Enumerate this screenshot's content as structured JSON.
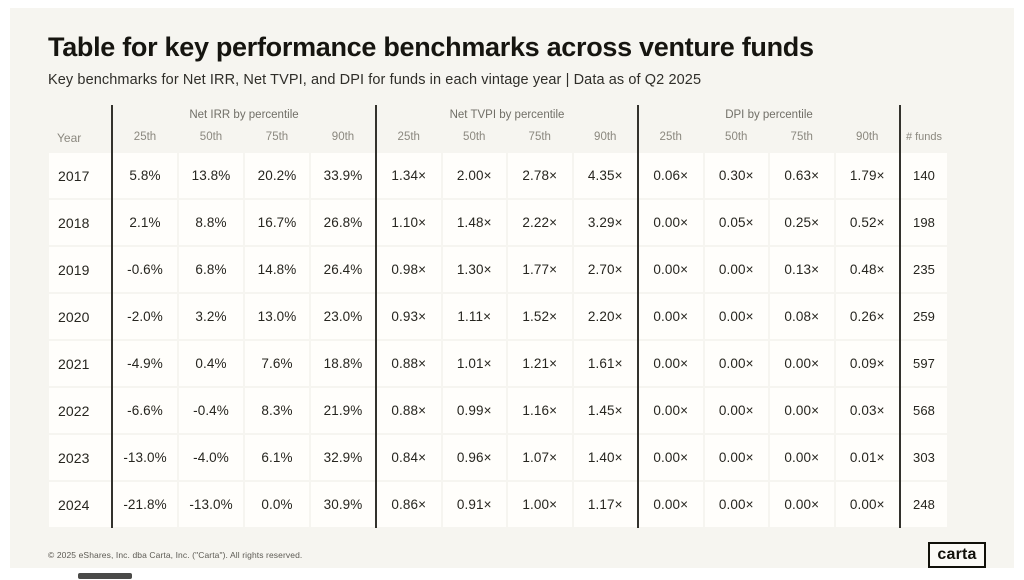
{
  "header": {
    "title": "Table for key performance benchmarks across venture funds",
    "subtitle": "Key benchmarks for Net IRR, Net TVPI, and DPI for funds in each vintage year | Data as of Q2 2025"
  },
  "footer": {
    "copyright": "© 2025 eShares, Inc. dba Carta, Inc. (\"Carta\"). All rights reserved.",
    "logo_text": "carta"
  },
  "colors": {
    "card_bg": "#f6f5f0",
    "cell_bg": "#fffefb",
    "separator_line": "#33322d",
    "title_text": "#161510",
    "muted_header_text": "#8b887f"
  },
  "chart_data": {
    "type": "table",
    "title": "Table for key performance benchmarks across venture funds",
    "subtitle": "Key benchmarks for Net IRR, Net TVPI, and DPI for funds in each vintage year | Data as of Q2 2025",
    "column_groups": [
      {
        "label": "",
        "span": 1
      },
      {
        "label": "Net IRR by percentile",
        "span": 4
      },
      {
        "label": "Net TVPI by percentile",
        "span": 4
      },
      {
        "label": "DPI by percentile",
        "span": 4
      },
      {
        "label": "",
        "span": 1
      }
    ],
    "sub_headers": {
      "year": "Year",
      "irr": [
        "25th",
        "50th",
        "75th",
        "90th"
      ],
      "tvpi": [
        "25th",
        "50th",
        "75th",
        "90th"
      ],
      "dpi": [
        "25th",
        "50th",
        "75th",
        "90th"
      ],
      "funds": "# funds"
    },
    "rows": [
      {
        "year": "2017",
        "net_irr": [
          "5.8%",
          "13.8%",
          "20.2%",
          "33.9%"
        ],
        "net_tvpi": [
          "1.34×",
          "2.00×",
          "2.78×",
          "4.35×"
        ],
        "dpi": [
          "0.06×",
          "0.30×",
          "0.63×",
          "1.79×"
        ],
        "funds": "140"
      },
      {
        "year": "2018",
        "net_irr": [
          "2.1%",
          "8.8%",
          "16.7%",
          "26.8%"
        ],
        "net_tvpi": [
          "1.10×",
          "1.48×",
          "2.22×",
          "3.29×"
        ],
        "dpi": [
          "0.00×",
          "0.05×",
          "0.25×",
          "0.52×"
        ],
        "funds": "198"
      },
      {
        "year": "2019",
        "net_irr": [
          "-0.6%",
          "6.8%",
          "14.8%",
          "26.4%"
        ],
        "net_tvpi": [
          "0.98×",
          "1.30×",
          "1.77×",
          "2.70×"
        ],
        "dpi": [
          "0.00×",
          "0.00×",
          "0.13×",
          "0.48×"
        ],
        "funds": "235"
      },
      {
        "year": "2020",
        "net_irr": [
          "-2.0%",
          "3.2%",
          "13.0%",
          "23.0%"
        ],
        "net_tvpi": [
          "0.93×",
          "1.11×",
          "1.52×",
          "2.20×"
        ],
        "dpi": [
          "0.00×",
          "0.00×",
          "0.08×",
          "0.26×"
        ],
        "funds": "259"
      },
      {
        "year": "2021",
        "net_irr": [
          "-4.9%",
          "0.4%",
          "7.6%",
          "18.8%"
        ],
        "net_tvpi": [
          "0.88×",
          "1.01×",
          "1.21×",
          "1.61×"
        ],
        "dpi": [
          "0.00×",
          "0.00×",
          "0.00×",
          "0.09×"
        ],
        "funds": "597"
      },
      {
        "year": "2022",
        "net_irr": [
          "-6.6%",
          "-0.4%",
          "8.3%",
          "21.9%"
        ],
        "net_tvpi": [
          "0.88×",
          "0.99×",
          "1.16×",
          "1.45×"
        ],
        "dpi": [
          "0.00×",
          "0.00×",
          "0.00×",
          "0.03×"
        ],
        "funds": "568"
      },
      {
        "year": "2023",
        "net_irr": [
          "-13.0%",
          "-4.0%",
          "6.1%",
          "32.9%"
        ],
        "net_tvpi": [
          "0.84×",
          "0.96×",
          "1.07×",
          "1.40×"
        ],
        "dpi": [
          "0.00×",
          "0.00×",
          "0.00×",
          "0.01×"
        ],
        "funds": "303"
      },
      {
        "year": "2024",
        "net_irr": [
          "-21.8%",
          "-13.0%",
          "0.0%",
          "30.9%"
        ],
        "net_tvpi": [
          "0.86×",
          "0.91×",
          "1.00×",
          "1.17×"
        ],
        "dpi": [
          "0.00×",
          "0.00×",
          "0.00×",
          "0.00×"
        ],
        "funds": "248"
      }
    ]
  }
}
